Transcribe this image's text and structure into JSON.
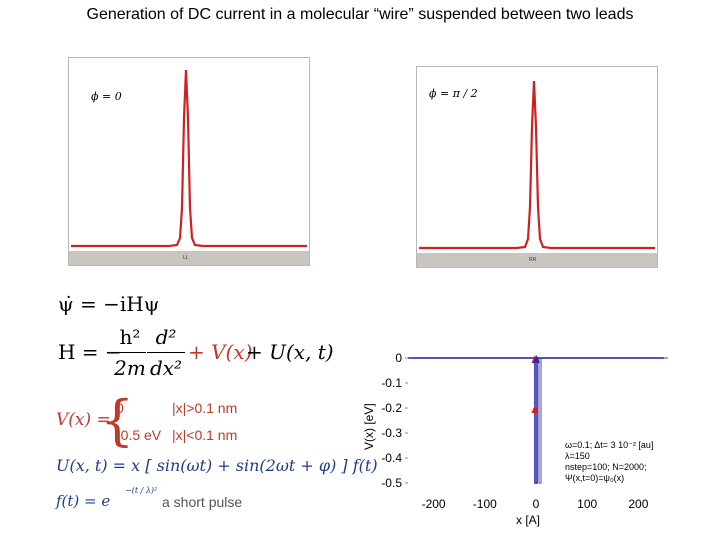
{
  "title": "Generation of DC current in a molecular “wire” suspended between two leads",
  "left_panel": {
    "phi_label": "ϕ = 0",
    "tag": "LL",
    "peak_color": "#cc2222"
  },
  "right_panel": {
    "phi_label": "ϕ = π / 2",
    "tag": "RR",
    "peak_color": "#cc2222"
  },
  "equations": {
    "tdse": "ψ̇ = −iHψ",
    "hamiltonian_lhs": "H = −",
    "hamiltonian_num": "h²",
    "hamiltonian_den": "2m",
    "deriv_num": "d²",
    "deriv_den": "dx²",
    "hamiltonian_v": "+ V(x)",
    "hamiltonian_u": "+ U(x, t)",
    "v_lhs": "V(x) =",
    "v_case1_val": "0",
    "v_case1_cond": "|x|>0.1 nm",
    "v_case2_val": "-0.5 eV",
    "v_case2_cond": "|x|<0.1 nm",
    "u_def": "U(x, t) = x [ sin(ωt) + sin(2ωt + φ) ] f(t)",
    "f_def": "f(t) = e",
    "f_exp": "−(t / λ)²",
    "pulse_note": "a short pulse"
  },
  "chart_data": {
    "type": "line",
    "xlabel": "x [A]",
    "ylabel": "V(x) [eV]",
    "xlim": [
      -250,
      250
    ],
    "ylim": [
      -0.5,
      0
    ],
    "x_ticks": [
      "-200",
      "-100",
      "0",
      "100",
      "200"
    ],
    "y_ticks": [
      "0",
      "-0.1",
      "-0.2",
      "-0.3",
      "-0.4",
      "-0.5"
    ],
    "series": [
      {
        "color": "#2a2aa8",
        "x": [
          -250,
          -2,
          -2,
          0,
          0,
          2,
          2,
          250
        ],
        "y": [
          0,
          0,
          -0.5,
          -0.5,
          -0.5,
          -0.5,
          0,
          0
        ]
      }
    ],
    "markers": [
      {
        "x": -2,
        "y": 0,
        "color": "#cc2222"
      },
      {
        "x": -2,
        "y": -0.2,
        "color": "#cc2222"
      },
      {
        "x": 1,
        "y": 0,
        "color": "#2a2aa8"
      }
    ],
    "params": [
      "ω=0.1; Δt= 3 10⁻² [au]",
      "λ=150",
      "nstep=100; N=2000;",
      "Ψ(x,t=0)=ψ₀(x)"
    ]
  }
}
